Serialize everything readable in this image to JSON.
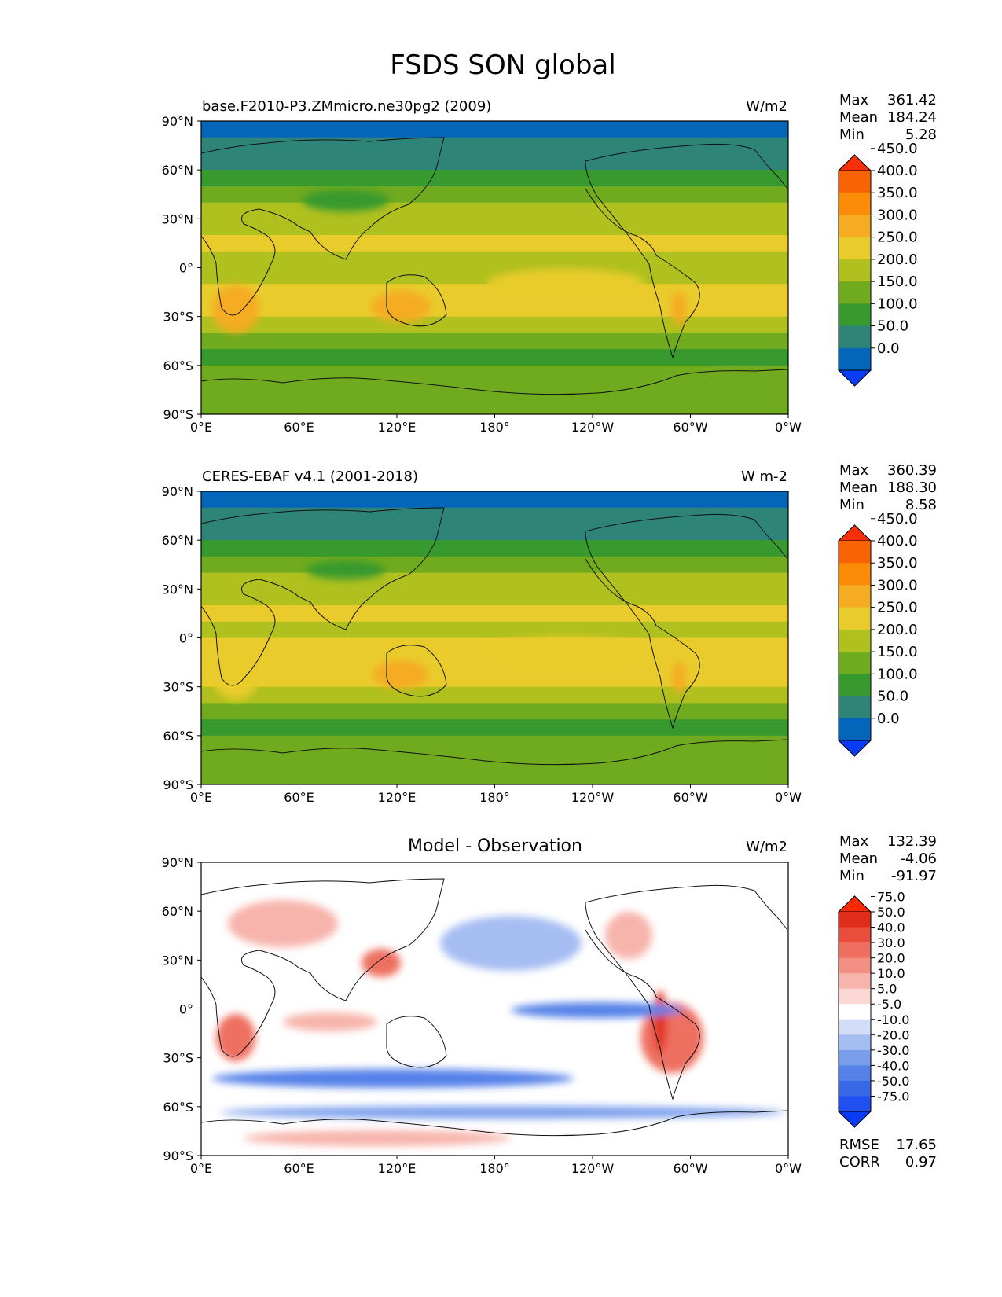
{
  "figure": {
    "title": "FSDS SON global"
  },
  "panels": [
    {
      "title_left": "base.F2010-P3.ZMmicro.ne30pg2 (2009)",
      "title_center": "",
      "units": "W/m2",
      "stats": [
        {
          "label": "Max",
          "value": "361.42"
        },
        {
          "label": "Mean",
          "value": "184.24"
        },
        {
          "label": "Min",
          "value": "5.28"
        }
      ],
      "extra_stats": []
    },
    {
      "title_left": "CERES-EBAF v4.1 (2001-2018)",
      "title_center": "",
      "units": "W m-2",
      "stats": [
        {
          "label": "Max",
          "value": "360.39"
        },
        {
          "label": "Mean",
          "value": "188.30"
        },
        {
          "label": "Min",
          "value": "8.58"
        }
      ],
      "extra_stats": []
    },
    {
      "title_left": "",
      "title_center": "Model - Observation",
      "units": "W/m2",
      "stats": [
        {
          "label": "Max",
          "value": "132.39"
        },
        {
          "label": "Mean",
          "value": "-4.06"
        },
        {
          "label": "Min",
          "value": "-91.97"
        }
      ],
      "extra_stats": [
        {
          "label": "RMSE",
          "value": "17.65"
        },
        {
          "label": "CORR",
          "value": "0.97"
        }
      ]
    }
  ],
  "chart_data": [
    {
      "type": "heatmap",
      "subtype": "filled-contour global map (equirectangular)",
      "variable": "FSDS",
      "season": "SON",
      "xticks": [
        "0°E",
        "60°E",
        "120°E",
        "180°",
        "120°W",
        "60°W",
        "0°W"
      ],
      "yticks": [
        "90°N",
        "60°N",
        "30°N",
        "0°",
        "30°S",
        "60°S",
        "90°S"
      ],
      "xlim": [
        0,
        360
      ],
      "ylim": [
        -90,
        90
      ],
      "colorbar": {
        "levels": [
          0,
          50,
          100,
          150,
          200,
          250,
          300,
          350,
          400,
          450
        ],
        "tick_labels": [
          "0.0",
          "50.0",
          "100.0",
          "150.0",
          "200.0",
          "250.0",
          "300.0",
          "350.0",
          "400.0",
          "450.0"
        ],
        "colors": [
          "#0a3cf5",
          "#0466b8",
          "#2f8478",
          "#389a2e",
          "#70aa1e",
          "#b0c01e",
          "#e9cc2c",
          "#f5ab22",
          "#fb8c08",
          "#f86304",
          "#f92f0a"
        ],
        "extend": "both"
      },
      "zonal_means": [
        {
          "lat": 85,
          "value": 40
        },
        {
          "lat": 75,
          "value": 55
        },
        {
          "lat": 65,
          "value": 95
        },
        {
          "lat": 55,
          "value": 120
        },
        {
          "lat": 45,
          "value": 160
        },
        {
          "lat": 35,
          "value": 215
        },
        {
          "lat": 25,
          "value": 240
        },
        {
          "lat": 15,
          "value": 250
        },
        {
          "lat": 5,
          "value": 220
        },
        {
          "lat": -5,
          "value": 245
        },
        {
          "lat": -15,
          "value": 265
        },
        {
          "lat": -25,
          "value": 270
        },
        {
          "lat": -35,
          "value": 235
        },
        {
          "lat": -45,
          "value": 180
        },
        {
          "lat": -55,
          "value": 140
        },
        {
          "lat": -65,
          "value": 150
        },
        {
          "lat": -75,
          "value": 175
        },
        {
          "lat": -85,
          "value": 190
        }
      ]
    },
    {
      "type": "heatmap",
      "subtype": "filled-contour global map (equirectangular)",
      "variable": "FSDS",
      "season": "SON",
      "xticks": [
        "0°E",
        "60°E",
        "120°E",
        "180°",
        "120°W",
        "60°W",
        "0°W"
      ],
      "yticks": [
        "90°N",
        "60°N",
        "30°N",
        "0°",
        "30°S",
        "60°S",
        "90°S"
      ],
      "xlim": [
        0,
        360
      ],
      "ylim": [
        -90,
        90
      ],
      "colorbar": {
        "levels": [
          0,
          50,
          100,
          150,
          200,
          250,
          300,
          350,
          400,
          450
        ],
        "tick_labels": [
          "0.0",
          "50.0",
          "100.0",
          "150.0",
          "200.0",
          "250.0",
          "300.0",
          "350.0",
          "400.0",
          "450.0"
        ],
        "colors": [
          "#0a3cf5",
          "#0466b8",
          "#2f8478",
          "#389a2e",
          "#70aa1e",
          "#b0c01e",
          "#e9cc2c",
          "#f5ab22",
          "#fb8c08",
          "#f86304",
          "#f92f0a"
        ],
        "extend": "both"
      },
      "zonal_means": [
        {
          "lat": 85,
          "value": 40
        },
        {
          "lat": 75,
          "value": 60
        },
        {
          "lat": 65,
          "value": 95
        },
        {
          "lat": 55,
          "value": 125
        },
        {
          "lat": 45,
          "value": 165
        },
        {
          "lat": 35,
          "value": 210
        },
        {
          "lat": 25,
          "value": 235
        },
        {
          "lat": 15,
          "value": 250
        },
        {
          "lat": 5,
          "value": 230
        },
        {
          "lat": -5,
          "value": 255
        },
        {
          "lat": -15,
          "value": 270
        },
        {
          "lat": -25,
          "value": 265
        },
        {
          "lat": -35,
          "value": 230
        },
        {
          "lat": -45,
          "value": 185
        },
        {
          "lat": -55,
          "value": 145
        },
        {
          "lat": -65,
          "value": 155
        },
        {
          "lat": -75,
          "value": 180
        },
        {
          "lat": -85,
          "value": 195
        }
      ]
    },
    {
      "type": "heatmap",
      "subtype": "filled-contour global map (equirectangular), difference field",
      "variable": "FSDS",
      "season": "SON",
      "xticks": [
        "0°E",
        "60°E",
        "120°E",
        "180°",
        "120°W",
        "60°W",
        "0°W"
      ],
      "yticks": [
        "90°N",
        "60°N",
        "30°N",
        "0°",
        "30°S",
        "60°S",
        "90°S"
      ],
      "xlim": [
        0,
        360
      ],
      "ylim": [
        -90,
        90
      ],
      "colorbar": {
        "levels": [
          -75,
          -50,
          -40,
          -30,
          -20,
          -10,
          -5,
          5,
          10,
          20,
          30,
          40,
          50,
          75
        ],
        "tick_labels": [
          "-75.0",
          "-50.0",
          "-40.0",
          "-30.0",
          "-20.0",
          "-10.0",
          "-5.0",
          "5.0",
          "10.0",
          "20.0",
          "30.0",
          "40.0",
          "50.0",
          "75.0"
        ],
        "colors": [
          "#0a3cf5",
          "#2050f0",
          "#3868e6",
          "#5581e8",
          "#7a9eec",
          "#a6bdf2",
          "#d2ddf8",
          "#ffffff",
          "#fbd8d4",
          "#f7b4ac",
          "#f39084",
          "#ee6f60",
          "#e94e3c",
          "#e02d1a",
          "#f82a06"
        ],
        "extend": "both"
      }
    }
  ]
}
